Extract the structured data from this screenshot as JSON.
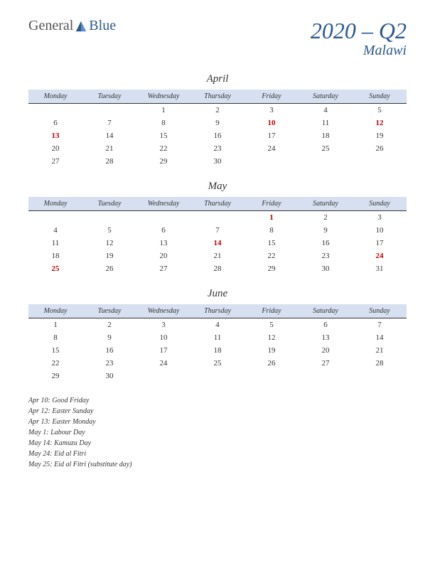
{
  "logo": {
    "text1": "General",
    "text2": "Blue",
    "icon_color1": "#2b5a8f",
    "icon_color2": "#5a8fc8"
  },
  "title": {
    "main": "2020 – Q2",
    "sub": "Malawi"
  },
  "colors": {
    "header_bg": "#d6e0f0",
    "holiday": "#c00000",
    "brand": "#2b5a8f"
  },
  "day_headers": [
    "Monday",
    "Tuesday",
    "Wednesday",
    "Thursday",
    "Friday",
    "Saturday",
    "Sunday"
  ],
  "months": [
    {
      "name": "April",
      "weeks": [
        [
          "",
          "",
          "1",
          "2",
          "3",
          "4",
          "5"
        ],
        [
          "6",
          "7",
          "8",
          "9",
          "10",
          "11",
          "12"
        ],
        [
          "13",
          "14",
          "15",
          "16",
          "17",
          "18",
          "19"
        ],
        [
          "20",
          "21",
          "22",
          "23",
          "24",
          "25",
          "26"
        ],
        [
          "27",
          "28",
          "29",
          "30",
          "",
          "",
          ""
        ]
      ],
      "holidays": [
        "10",
        "12",
        "13"
      ]
    },
    {
      "name": "May",
      "weeks": [
        [
          "",
          "",
          "",
          "",
          "1",
          "2",
          "3"
        ],
        [
          "4",
          "5",
          "6",
          "7",
          "8",
          "9",
          "10"
        ],
        [
          "11",
          "12",
          "13",
          "14",
          "15",
          "16",
          "17"
        ],
        [
          "18",
          "19",
          "20",
          "21",
          "22",
          "23",
          "24"
        ],
        [
          "25",
          "26",
          "27",
          "28",
          "29",
          "30",
          "31"
        ]
      ],
      "holidays": [
        "1",
        "14",
        "24",
        "25"
      ]
    },
    {
      "name": "June",
      "weeks": [
        [
          "1",
          "2",
          "3",
          "4",
          "5",
          "6",
          "7"
        ],
        [
          "8",
          "9",
          "10",
          "11",
          "12",
          "13",
          "14"
        ],
        [
          "15",
          "16",
          "17",
          "18",
          "19",
          "20",
          "21"
        ],
        [
          "22",
          "23",
          "24",
          "25",
          "26",
          "27",
          "28"
        ],
        [
          "29",
          "30",
          "",
          "",
          "",
          "",
          ""
        ]
      ],
      "holidays": []
    }
  ],
  "holiday_list": [
    "Apr 10: Good Friday",
    "Apr 12: Easter Sunday",
    "Apr 13: Easter Monday",
    "May 1: Labour Day",
    "May 14: Kamuzu Day",
    "May 24: Eid al Fitri",
    "May 25: Eid al Fitri (substitute day)"
  ]
}
